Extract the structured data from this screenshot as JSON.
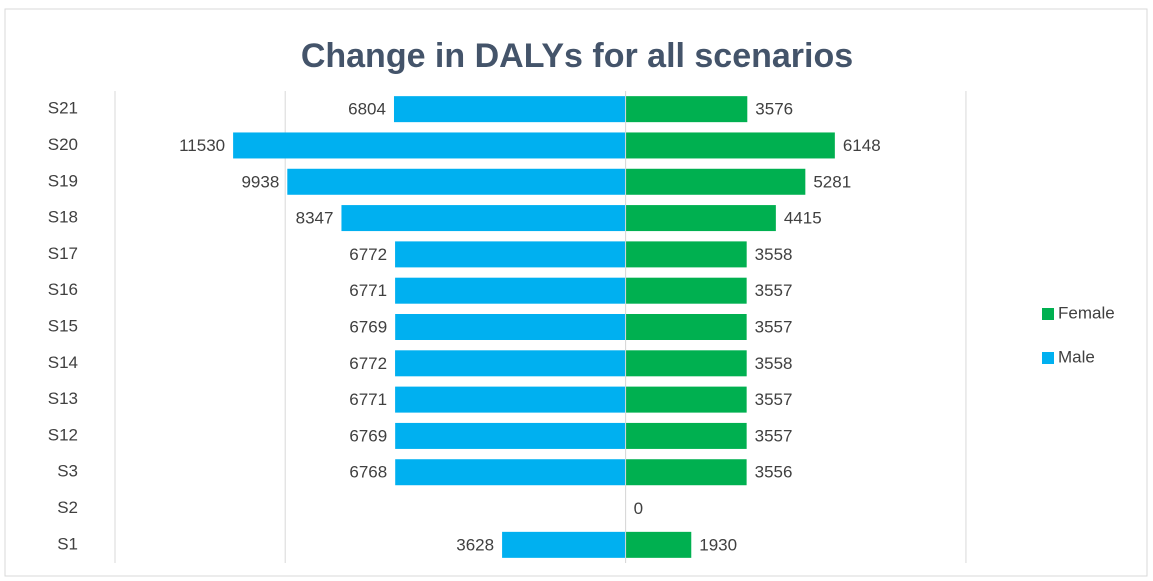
{
  "chart_data": {
    "type": "bar",
    "orientation": "horizontal",
    "title": "Change in DALYs for all scenarios",
    "categories": [
      "S1",
      "S2",
      "S3",
      "S12",
      "S13",
      "S14",
      "S15",
      "S16",
      "S17",
      "S18",
      "S19",
      "S20",
      "S21"
    ],
    "series": [
      {
        "name": "Female",
        "color": "#00b050",
        "values": [
          1930,
          0,
          3556,
          3557,
          3557,
          3558,
          3557,
          3557,
          3558,
          4415,
          5281,
          6148,
          3576
        ]
      },
      {
        "name": "Male",
        "color": "#00b0f0",
        "values": [
          -3628,
          null,
          -6768,
          -6769,
          -6771,
          -6772,
          -6769,
          -6771,
          -6772,
          -8347,
          -9938,
          -11530,
          -6804
        ],
        "value_labels": [
          "3628",
          null,
          "6768",
          "6769",
          "6771",
          "6772",
          "6769",
          "6771",
          "6772",
          "8347",
          "9938",
          "11530",
          "6804"
        ]
      }
    ],
    "xlim": [
      -15000,
      11000
    ],
    "xticks": [
      -15000,
      -10000,
      0,
      10000
    ],
    "grid": true,
    "legend": "right"
  }
}
